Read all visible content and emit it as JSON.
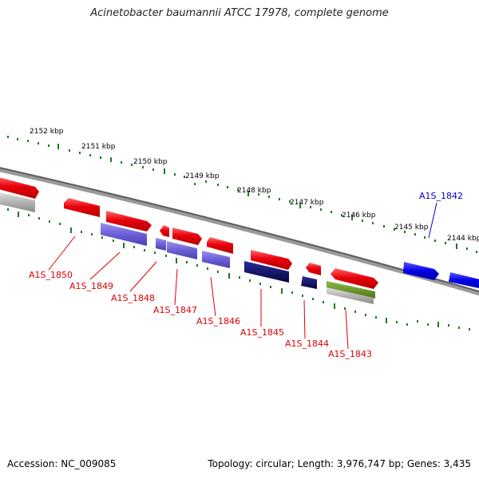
{
  "title": "Acinetobacter baumannii ATCC 17978, complete genome",
  "footer": {
    "accession": "Accession: NC_009085",
    "topology": "Topology: circular; Length: 3,976,747 bp; Genes: 3,435"
  },
  "colors": {
    "forward_cds": "#e8000b",
    "reverse_cds": "#6b5fd6",
    "dark_cds": "#0d0f6b",
    "blue_cds": "#0000e6",
    "green_feature": "#5e8a1a",
    "gray_feature": "#a9a9a9",
    "backbone": "#7a7a7a",
    "tick": "#1e7a1e",
    "highlight_label": "#0000cc",
    "label": "#dd0000"
  },
  "scale": {
    "unit": "kbp",
    "ticks": [
      "2152 kbp",
      "2151 kbp",
      "2150 kbp",
      "2149 kbp",
      "2148 kbp",
      "2147 kbp",
      "2146 kbp",
      "2145 kbp",
      "2144 kbp"
    ]
  },
  "genes": [
    {
      "label": "A1S_1850",
      "strand": "reverse",
      "highlighted": false
    },
    {
      "label": "A1S_1849",
      "strand": "forward",
      "highlighted": false
    },
    {
      "label": "A1S_1848",
      "strand": "forward",
      "highlighted": false
    },
    {
      "label": "A1S_1847",
      "strand": "forward",
      "highlighted": false
    },
    {
      "label": "A1S_1846",
      "strand": "reverse",
      "highlighted": false
    },
    {
      "label": "A1S_1845",
      "strand": "forward",
      "highlighted": false
    },
    {
      "label": "A1S_1844",
      "strand": "forward",
      "highlighted": false
    },
    {
      "label": "A1S_1843",
      "strand": "forward",
      "highlighted": false
    },
    {
      "label": "A1S_1842",
      "strand": "forward",
      "highlighted": true
    }
  ]
}
